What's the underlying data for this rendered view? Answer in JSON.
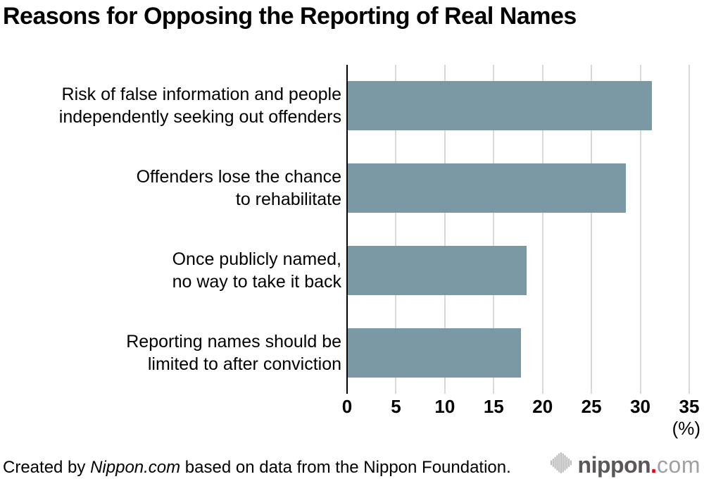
{
  "title": "Reasons for Opposing the Reporting of Real Names",
  "chart_data": {
    "type": "bar",
    "orientation": "horizontal",
    "title": "Reasons for Opposing the Reporting of Real Names",
    "categories": [
      "Risk of false information and people independently seeking out offenders",
      "Offenders lose the chance to rehabilitate",
      "Once publicly named, no way to take it back",
      "Reporting names should be limited to after conviction"
    ],
    "category_lines": [
      [
        "Risk of false information and people",
        "independently seeking out offenders"
      ],
      [
        "Offenders lose the chance",
        "to rehabilitate"
      ],
      [
        "Once publicly named,",
        "no way to take it back"
      ],
      [
        "Reporting names should be",
        "limited to after conviction"
      ]
    ],
    "values": [
      31.2,
      28.5,
      18.4,
      17.8
    ],
    "xlabel": "(%)",
    "xlim": [
      0,
      35
    ],
    "xticks": [
      0,
      5,
      10,
      15,
      20,
      25,
      30,
      35
    ],
    "grid": true,
    "legend": "none",
    "bar_color": "#7b99a4",
    "gridline_color": "#d9d9d9",
    "axis_color": "#000000"
  },
  "footer": {
    "credit_prefix": "Created by ",
    "credit_source": "Nippon.com",
    "credit_suffix": " based on data from the Nippon Foundation.",
    "logo": {
      "icon": "soundwave-icon",
      "name": "nippon",
      "dot": ".",
      "tld": "com"
    }
  },
  "colors": {
    "bar": "#7b99a4",
    "grid": "#d9d9d9",
    "axis": "#000000",
    "logo_dark_gray": "#595757",
    "logo_light_gray": "#9fa0a0",
    "logo_red": "#e60012",
    "logo_wave_gray": "#b5b5b5"
  }
}
